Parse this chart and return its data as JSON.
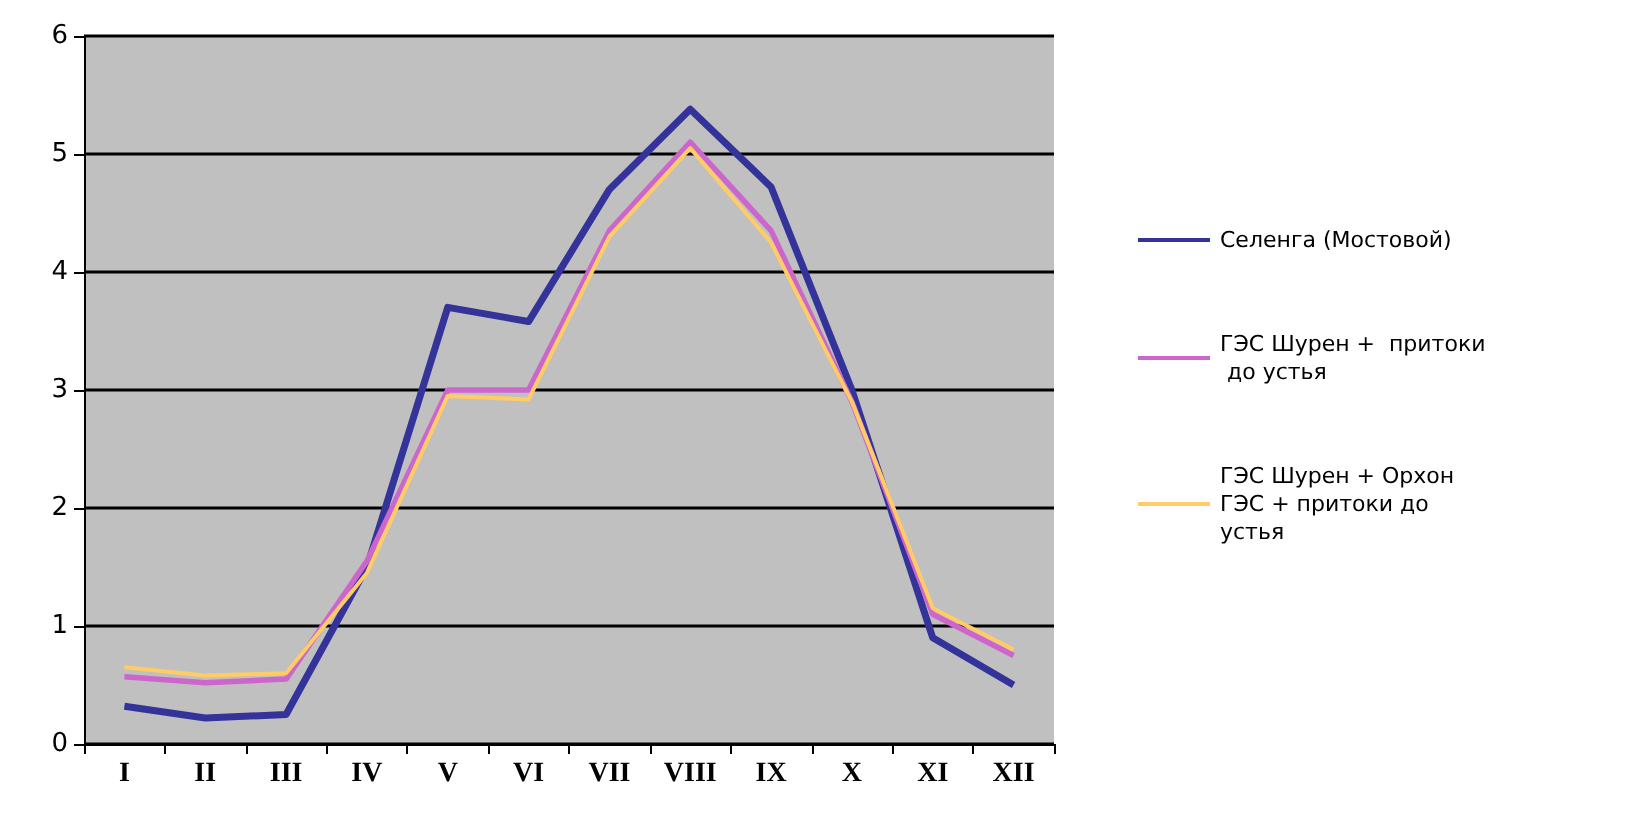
{
  "chart_data": {
    "type": "line",
    "categories": [
      "I",
      "II",
      "III",
      "IV",
      "V",
      "VI",
      "VII",
      "VIII",
      "IX",
      "X",
      "XI",
      "XII"
    ],
    "series": [
      {
        "name": "Селенга (Мостовой)",
        "color": "#333399",
        "values": [
          0.32,
          0.22,
          0.25,
          1.5,
          3.7,
          3.58,
          4.7,
          5.38,
          4.72,
          3.0,
          0.9,
          0.5
        ]
      },
      {
        "name": "ГЭС Шурен +  притоки до устья",
        "color": "#cc66cc",
        "values": [
          0.57,
          0.52,
          0.55,
          1.55,
          3.0,
          3.0,
          4.35,
          5.1,
          4.35,
          2.9,
          1.1,
          0.75
        ]
      },
      {
        "name": "ГЭС Шурен + Орхон ГЭС + притоки до устья",
        "color": "#ffcc66",
        "values": [
          0.65,
          0.58,
          0.6,
          1.45,
          2.95,
          2.92,
          4.3,
          5.05,
          4.25,
          2.9,
          1.15,
          0.8
        ]
      }
    ],
    "ylim": [
      0,
      6
    ],
    "yticks": [
      0,
      1,
      2,
      3,
      4,
      5,
      6
    ],
    "grid": "y",
    "legend": "right",
    "marker": "none",
    "line_style": "solid"
  }
}
